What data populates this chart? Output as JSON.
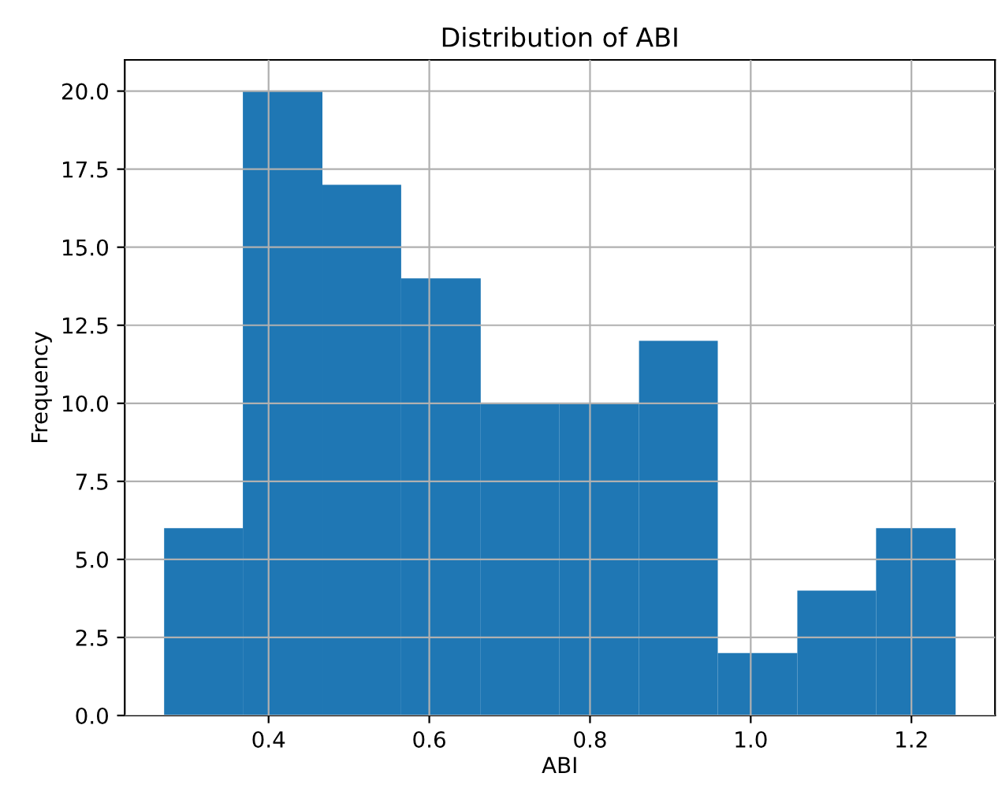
{
  "chart_data": {
    "type": "histogram",
    "title": "Distribution of ABI",
    "xlabel": "ABI",
    "ylabel": "Frequency",
    "bins": [
      0.27,
      0.368,
      0.467,
      0.565,
      0.664,
      0.762,
      0.861,
      0.959,
      1.058,
      1.156,
      1.255
    ],
    "values": [
      6,
      20,
      17,
      14,
      10,
      10,
      12,
      2,
      4,
      6
    ],
    "color": "#1f77b4",
    "xlim": [
      0.221,
      1.304
    ],
    "ylim": [
      0,
      21
    ],
    "xticks": [
      0.4,
      0.6,
      0.8,
      {
        "value": 1,
        "label": "1.0"
      },
      1.2
    ],
    "yticks": [
      {
        "value": 0,
        "label": "0.0"
      },
      {
        "value": 2.5,
        "label": "2.5"
      },
      {
        "value": 5,
        "label": "5.0"
      },
      {
        "value": 7.5,
        "label": "7.5"
      },
      {
        "value": 10,
        "label": "10.0"
      },
      {
        "value": 12.5,
        "label": "12.5"
      },
      {
        "value": 15,
        "label": "15.0"
      },
      {
        "value": 17.5,
        "label": "17.5"
      },
      {
        "value": 20,
        "label": "20.0"
      }
    ],
    "grid": true
  }
}
